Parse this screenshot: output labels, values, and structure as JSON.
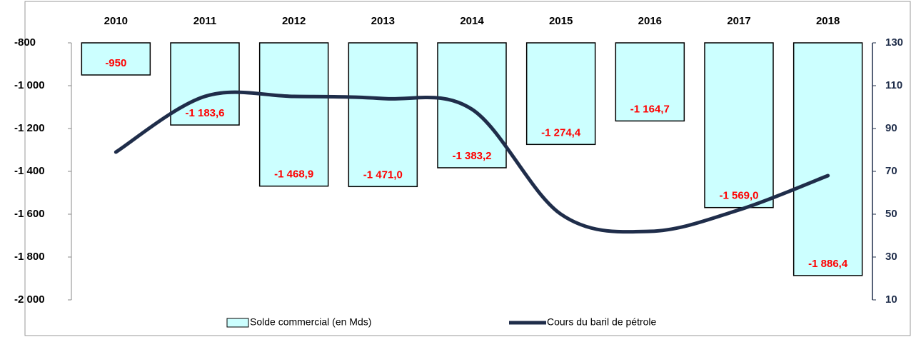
{
  "chart_data": {
    "type": "bar",
    "categories": [
      "2010",
      "2011",
      "2012",
      "2013",
      "2014",
      "2015",
      "2016",
      "2017",
      "2018"
    ],
    "series": [
      {
        "name": "Solde commercial (en Mds)",
        "type": "bar",
        "color": "#ccffff",
        "values": [
          -950,
          -1183.6,
          -1468.9,
          -1471.0,
          -1383.2,
          -1274.4,
          -1164.7,
          -1569.0,
          -1886.4
        ],
        "value_labels": [
          "-950",
          "-1 183,6",
          "-1 468,9",
          "-1 471,0",
          "-1 383,2",
          "-1 274,4",
          "-1 164,7",
          "-1 569,0",
          "-1 886,4"
        ]
      },
      {
        "name": "Cours du baril de pétrole",
        "type": "line",
        "axis": "y2",
        "color": "#1f2d4a",
        "values": [
          79,
          105,
          105,
          104,
          99,
          50,
          42,
          52,
          68
        ]
      }
    ],
    "ylim": [
      -2000,
      -800
    ],
    "yticks": [
      -800,
      {
        "value": -1000,
        "label": "-1 000"
      },
      {
        "value": -1200,
        "label": "-1 200"
      },
      {
        "value": -1400,
        "label": "-1 400"
      },
      {
        "value": -1600,
        "label": "-1 600"
      },
      {
        "value": -1800,
        "label": "-1 800"
      },
      {
        "value": -2000,
        "label": "-2 000"
      }
    ],
    "y2lim": [
      10,
      130
    ],
    "y2ticks": [
      130,
      110,
      90,
      70,
      50,
      30,
      10
    ],
    "grid": false,
    "legend": "bottom"
  }
}
